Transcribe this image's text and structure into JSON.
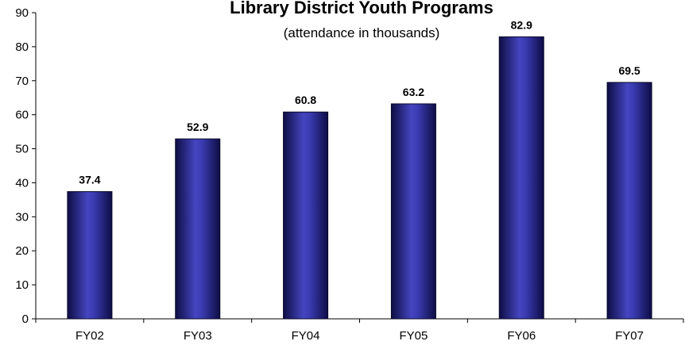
{
  "chart_data": {
    "type": "bar",
    "title": "Library District Youth Programs",
    "subtitle": "(attendance in thousands)",
    "categories": [
      "FY02",
      "FY03",
      "FY04",
      "FY05",
      "FY06",
      "FY07"
    ],
    "values": [
      37.4,
      52.9,
      60.8,
      63.2,
      82.9,
      69.5
    ],
    "data_labels": [
      "37.4",
      "52.9",
      "60.8",
      "63.2",
      "82.9",
      "69.5"
    ],
    "xlabel": "",
    "ylabel": "",
    "ylim": [
      0,
      90
    ],
    "yticks": [
      "0",
      "10",
      "20",
      "30",
      "40",
      "50",
      "60",
      "70",
      "80",
      "90"
    ],
    "grid": false,
    "legend": "none",
    "colors": {
      "bar_dark": "#0d0d45",
      "bar_mid": "#3a3ab0",
      "bar_light": "#5a5ad0",
      "axis": "#000000"
    }
  }
}
